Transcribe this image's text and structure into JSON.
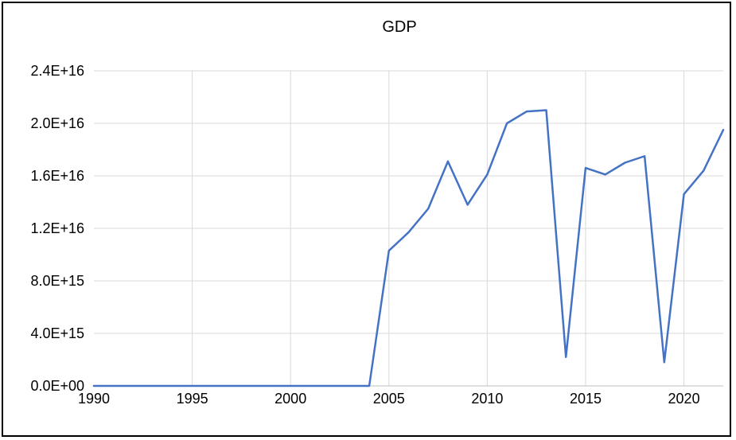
{
  "chart_data": {
    "type": "line",
    "title": "GDP",
    "xlabel": "",
    "ylabel": "",
    "x": [
      1990,
      1991,
      1992,
      1993,
      1994,
      1995,
      1996,
      1997,
      1998,
      1999,
      2000,
      2001,
      2002,
      2003,
      2004,
      2005,
      2006,
      2007,
      2008,
      2009,
      2010,
      2011,
      2012,
      2013,
      2014,
      2015,
      2016,
      2017,
      2018,
      2019,
      2020,
      2021,
      2022
    ],
    "series": [
      {
        "values": [
          0,
          0,
          0,
          0,
          0,
          0,
          0,
          0,
          0,
          0,
          0,
          0,
          0,
          0,
          0,
          1.03e+16,
          1.17e+16,
          1.35e+16,
          1.71e+16,
          1.38e+16,
          1.61e+16,
          2e+16,
          2.09e+16,
          2.1e+16,
          2200000000000000.0,
          1.66e+16,
          1.61e+16,
          1.7e+16,
          1.75e+16,
          1800000000000000.0,
          1.46e+16,
          1.64e+16,
          1.95e+16
        ],
        "color": "#4472c4"
      }
    ],
    "xlim": [
      1990,
      2022
    ],
    "ylim": [
      0,
      2.4e+16
    ],
    "x_ticks": [
      1990,
      1995,
      2000,
      2005,
      2010,
      2015,
      2020
    ],
    "x_tick_labels": [
      "1990",
      "1995",
      "2000",
      "2005",
      "2010",
      "2015",
      "2020"
    ],
    "y_ticks": [
      0,
      4000000000000000.0,
      8000000000000000.0,
      1.2e+16,
      1.6e+16,
      2e+16,
      2.4e+16
    ],
    "y_tick_labels": [
      "0.0E+00",
      "4.0E+15",
      "8.0E+15",
      "1.2E+16",
      "1.6E+16",
      "2.0E+16",
      "2.4E+16"
    ],
    "grid": true,
    "legend": "none",
    "gridline_color": "#d9d9d9",
    "axis_line_color": "#bfbfbf"
  }
}
